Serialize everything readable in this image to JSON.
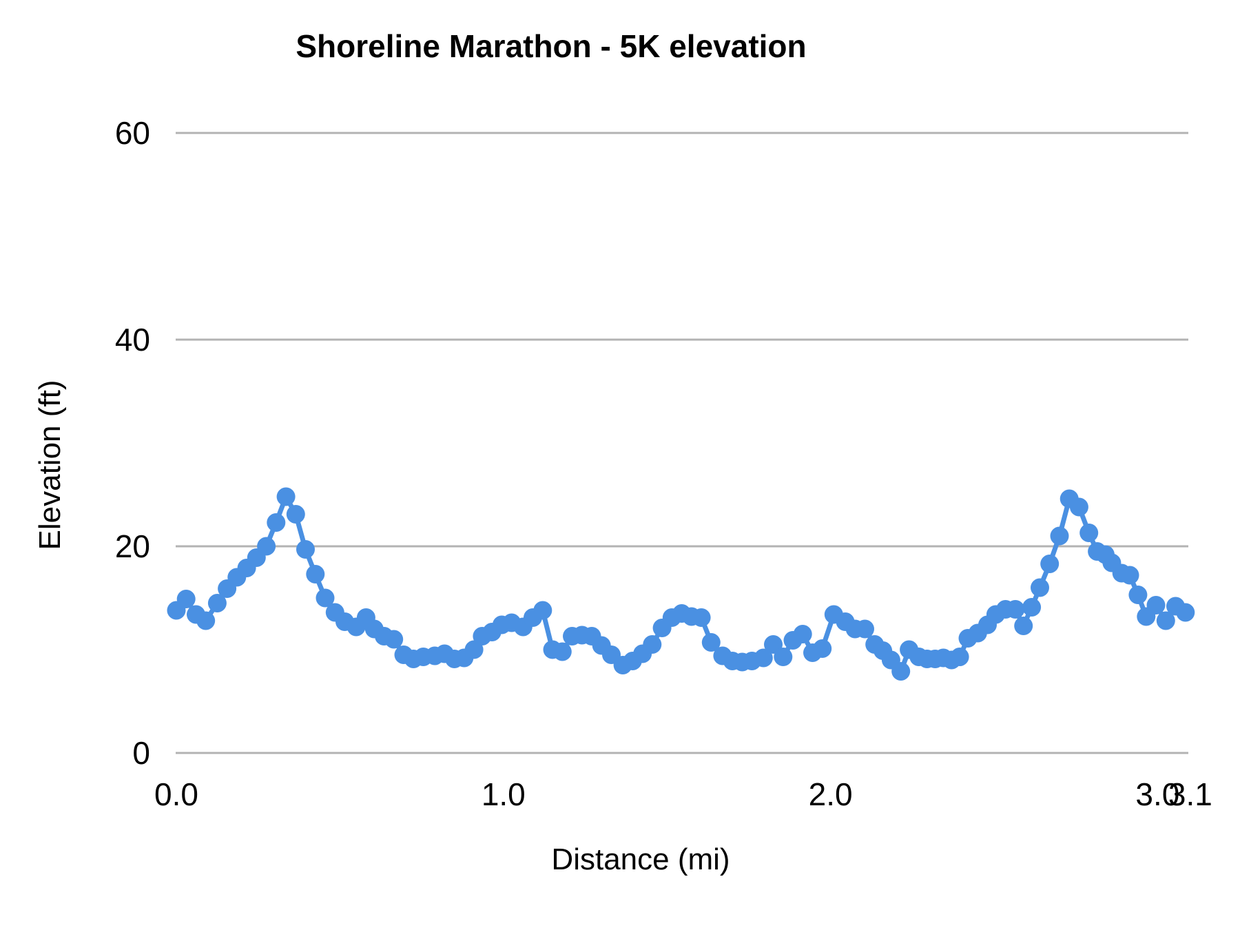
{
  "chart_data": {
    "type": "scatter",
    "title": "Shoreline Marathon - 5K elevation",
    "xlabel": "Distance (mi)",
    "ylabel": "Elevation (ft)",
    "xlim": [
      0,
      3.1
    ],
    "ylim": [
      0,
      60
    ],
    "grid": "horizontal-only",
    "legend_position": "none",
    "series_color": "#4a90e2",
    "gridline_color": "#b3b3b3",
    "text_color": "#000000",
    "x_ticks": [
      {
        "label": "0.0",
        "value": 0.0
      },
      {
        "label": "1.0",
        "value": 1.0
      },
      {
        "label": "2.0",
        "value": 2.0
      },
      {
        "label": "3.0",
        "value": 3.0
      },
      {
        "label": "3.1",
        "value": 3.1
      }
    ],
    "y_ticks": [
      {
        "label": "0",
        "value": 0
      },
      {
        "label": "20",
        "value": 20
      },
      {
        "label": "40",
        "value": 40
      },
      {
        "label": "60",
        "value": 60
      }
    ],
    "points": [
      [
        0.0,
        13.8
      ],
      [
        0.03,
        14.9
      ],
      [
        0.06,
        13.4
      ],
      [
        0.09,
        12.8
      ],
      [
        0.125,
        14.5
      ],
      [
        0.155,
        15.9
      ],
      [
        0.185,
        17.0
      ],
      [
        0.215,
        17.9
      ],
      [
        0.245,
        18.9
      ],
      [
        0.275,
        20.0
      ],
      [
        0.305,
        22.3
      ],
      [
        0.335,
        24.8
      ],
      [
        0.365,
        23.1
      ],
      [
        0.395,
        19.7
      ],
      [
        0.425,
        17.3
      ],
      [
        0.455,
        15.0
      ],
      [
        0.485,
        13.6
      ],
      [
        0.515,
        12.7
      ],
      [
        0.55,
        12.2
      ],
      [
        0.58,
        13.1
      ],
      [
        0.605,
        12.0
      ],
      [
        0.635,
        11.3
      ],
      [
        0.665,
        11.0
      ],
      [
        0.695,
        9.5
      ],
      [
        0.725,
        9.1
      ],
      [
        0.755,
        9.3
      ],
      [
        0.79,
        9.4
      ],
      [
        0.82,
        9.6
      ],
      [
        0.85,
        9.1
      ],
      [
        0.88,
        9.2
      ],
      [
        0.91,
        10.0
      ],
      [
        0.935,
        11.3
      ],
      [
        0.965,
        11.7
      ],
      [
        0.995,
        12.4
      ],
      [
        1.025,
        12.6
      ],
      [
        1.06,
        12.2
      ],
      [
        1.09,
        13.1
      ],
      [
        1.12,
        13.8
      ],
      [
        1.15,
        10.0
      ],
      [
        1.18,
        9.8
      ],
      [
        1.21,
        11.3
      ],
      [
        1.24,
        11.4
      ],
      [
        1.27,
        11.3
      ],
      [
        1.3,
        10.4
      ],
      [
        1.33,
        9.5
      ],
      [
        1.365,
        8.5
      ],
      [
        1.395,
        8.9
      ],
      [
        1.425,
        9.6
      ],
      [
        1.455,
        10.5
      ],
      [
        1.485,
        12.1
      ],
      [
        1.515,
        13.1
      ],
      [
        1.545,
        13.5
      ],
      [
        1.575,
        13.2
      ],
      [
        1.605,
        13.1
      ],
      [
        1.635,
        10.7
      ],
      [
        1.67,
        9.4
      ],
      [
        1.7,
        8.9
      ],
      [
        1.73,
        8.8
      ],
      [
        1.76,
        8.9
      ],
      [
        1.795,
        9.2
      ],
      [
        1.825,
        10.5
      ],
      [
        1.855,
        9.3
      ],
      [
        1.885,
        10.9
      ],
      [
        1.915,
        11.5
      ],
      [
        1.945,
        9.7
      ],
      [
        1.975,
        10.1
      ],
      [
        2.01,
        13.4
      ],
      [
        2.045,
        12.7
      ],
      [
        2.075,
        12.0
      ],
      [
        2.105,
        12.0
      ],
      [
        2.135,
        10.5
      ],
      [
        2.16,
        9.9
      ],
      [
        2.185,
        9.0
      ],
      [
        2.215,
        7.9
      ],
      [
        2.24,
        10.0
      ],
      [
        2.27,
        9.3
      ],
      [
        2.295,
        9.1
      ],
      [
        2.32,
        9.1
      ],
      [
        2.345,
        9.2
      ],
      [
        2.37,
        9.0
      ],
      [
        2.395,
        9.3
      ],
      [
        2.42,
        11.1
      ],
      [
        2.45,
        11.6
      ],
      [
        2.48,
        12.4
      ],
      [
        2.505,
        13.4
      ],
      [
        2.535,
        13.9
      ],
      [
        2.565,
        13.9
      ],
      [
        2.59,
        12.3
      ],
      [
        2.615,
        14.1
      ],
      [
        2.64,
        16.0
      ],
      [
        2.67,
        18.3
      ],
      [
        2.7,
        21.0
      ],
      [
        2.73,
        24.6
      ],
      [
        2.76,
        23.8
      ],
      [
        2.79,
        21.3
      ],
      [
        2.815,
        19.5
      ],
      [
        2.84,
        19.2
      ],
      [
        2.86,
        18.4
      ],
      [
        2.89,
        17.4
      ],
      [
        2.915,
        17.2
      ],
      [
        2.94,
        15.3
      ],
      [
        2.965,
        13.2
      ],
      [
        2.995,
        14.3
      ],
      [
        3.025,
        12.8
      ],
      [
        3.055,
        14.2
      ],
      [
        3.085,
        13.6
      ]
    ]
  }
}
